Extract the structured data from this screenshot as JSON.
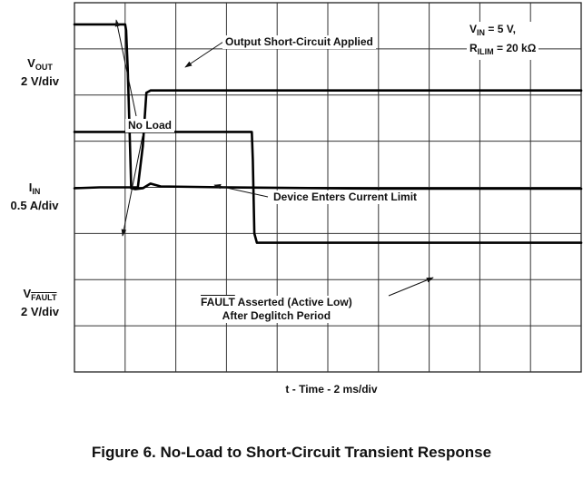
{
  "chart_data": {
    "type": "line",
    "xlabel": "t - Time - 2 ms/div",
    "x_divisions": 10,
    "y_divisions": 8,
    "title": "Figure 6. No-Load to Short-Circuit Transient Response",
    "conditions": {
      "vin": {
        "sym": "V",
        "sub": "IN",
        "text": " = 5 V,"
      },
      "rilim": {
        "sym": "R",
        "sub": "ILIM",
        "text": " = 20 kΩ"
      }
    },
    "channels": [
      {
        "name": "VOUT",
        "sym": "V",
        "sub": "OUT",
        "scale": "2 V/div"
      },
      {
        "name": "IIN",
        "sym": "I",
        "sub": "IN",
        "scale": "0.5 A/div"
      },
      {
        "name": "VFAULT",
        "sym": "V",
        "sub": "FAULT",
        "scale": "2 V/div"
      }
    ],
    "series": [
      {
        "channel": "VOUT",
        "points": [
          [
            0,
            7.53
          ],
          [
            1,
            7.53
          ],
          [
            1.02,
            7.4
          ],
          [
            1.05,
            6.6
          ],
          [
            1.08,
            5.5
          ],
          [
            1.12,
            3.98
          ],
          [
            1.2,
            3.96
          ],
          [
            1.35,
            3.98
          ],
          [
            1.5,
            4.08
          ],
          [
            1.7,
            4.02
          ],
          [
            3,
            4.0
          ],
          [
            6,
            3.97
          ],
          [
            10,
            3.97
          ]
        ]
      },
      {
        "name": "IIN",
        "channel": "IIN",
        "points": [
          [
            0,
            3.98
          ],
          [
            0.5,
            4.0
          ],
          [
            1.0,
            4.0
          ],
          [
            1.25,
            4.0
          ],
          [
            1.35,
            4.9
          ],
          [
            1.42,
            6.05
          ],
          [
            1.5,
            6.1
          ],
          [
            10,
            6.1
          ]
        ]
      },
      {
        "channel": "VFAULT",
        "points": [
          [
            0,
            5.2
          ],
          [
            3.5,
            5.2
          ],
          [
            3.52,
            4.6
          ],
          [
            3.55,
            3.0
          ],
          [
            3.6,
            2.8
          ],
          [
            10,
            2.8
          ]
        ]
      }
    ],
    "annotations": {
      "short_circuit": "Output Short-Circuit Applied",
      "no_load": "No Load",
      "current_limit": "Device Enters Current Limit",
      "fault_signal": "FAULT",
      "fault_rest": " Asserted (Active Low)",
      "fault_line2": "After Deglitch Period"
    }
  }
}
